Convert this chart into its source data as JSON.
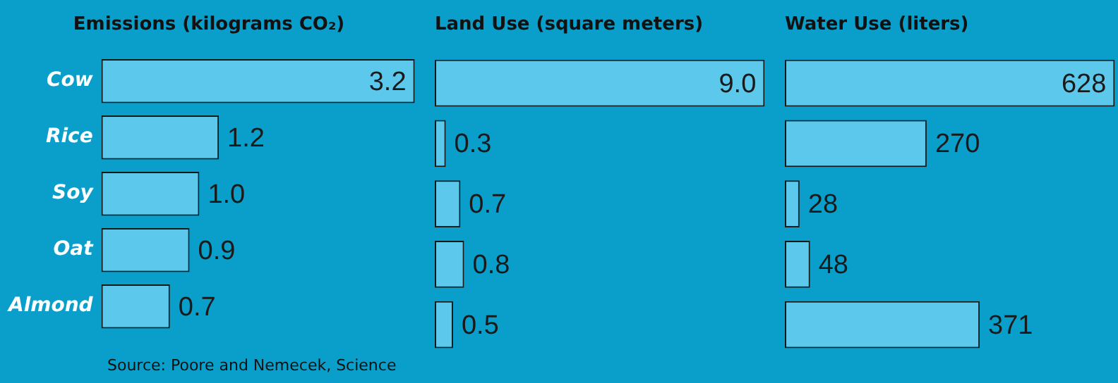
{
  "chart_data": [
    {
      "type": "bar",
      "orientation": "horizontal",
      "title": "Emissions (kilograms CO₂)",
      "categories": [
        "Cow",
        "Rice",
        "Soy",
        "Oat",
        "Almond"
      ],
      "values": [
        3.2,
        1.2,
        1.0,
        0.9,
        0.7
      ],
      "value_labels": [
        "3.2",
        "1.2",
        "1.0",
        "0.9",
        "0.7"
      ],
      "color": "#5bc8ec",
      "tick_labels": "y",
      "grid": false,
      "legend": false,
      "annotations": [
        "Source: Poore and Nemecek, Science"
      ]
    },
    {
      "type": "bar",
      "orientation": "horizontal",
      "title": "Land Use (square meters)",
      "categories": [
        null,
        null,
        null,
        null,
        null
      ],
      "values": [
        9.0,
        0.3,
        0.7,
        0.8,
        0.5
      ],
      "value_labels": [
        "9.0",
        "0.3",
        "0.7",
        "0.8",
        "0.5"
      ],
      "color": "#5bc8ec",
      "tick_labels": false,
      "grid": false,
      "legend": false
    },
    {
      "type": "bar",
      "orientation": "horizontal",
      "title": "Water Use (liters)",
      "categories": [
        null,
        null,
        null,
        null,
        null
      ],
      "values": [
        628,
        270,
        28,
        48,
        371
      ],
      "color": "#5bc8ec",
      "data_labels": true,
      "tick_labels": false,
      "grid": false,
      "legend": false
    }
  ]
}
